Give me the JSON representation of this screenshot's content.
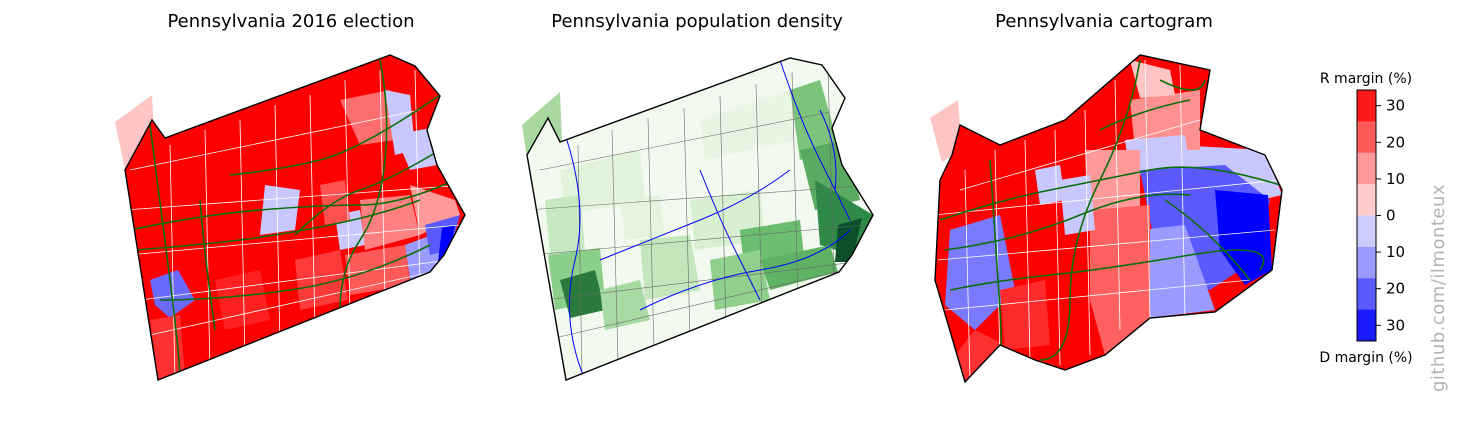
{
  "panels": [
    {
      "title": "Pennsylvania 2016 election"
    },
    {
      "title": "Pennsylvania population density"
    },
    {
      "title": "Pennsylvania cartogram"
    }
  ],
  "colorbar": {
    "top_label": "R margin (%)",
    "bottom_label": "D margin (%)",
    "ticks": [
      "30",
      "20",
      "10",
      "0",
      "10",
      "20",
      "30"
    ],
    "colors": [
      "#ff1a1a",
      "#ff5a5a",
      "#ff9a9a",
      "#ffcccc",
      "#ccccff",
      "#9a9aff",
      "#5a5aff",
      "#1a1aff"
    ]
  },
  "watermark": "github.com/ilmonteux",
  "colors": {
    "red_strong": "#ff0000",
    "blue_strong": "#0000ff",
    "highways": "#0b6e0b",
    "rivers": "#0000ff",
    "density_dark": "#1e7a3a",
    "density_light": "#f4fbf2"
  }
}
